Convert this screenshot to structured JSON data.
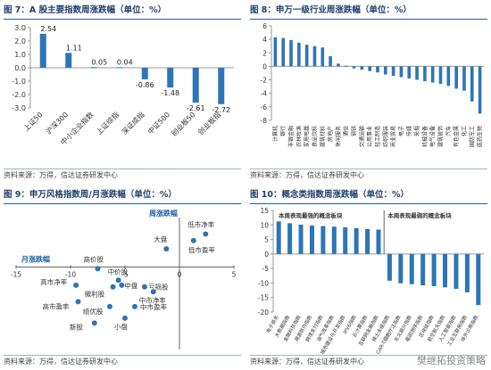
{
  "panels": {
    "p7": {
      "title": "图 7：A 股主要指数周涨跌幅（单位：%）",
      "source": "资料来源：万得，信达证券研发中心"
    },
    "p8": {
      "title": "图 8：申万一级行业周涨跌幅（单位：%）",
      "source": "资料来源：万得，信达证券研发中心"
    },
    "p9": {
      "title": "图 9：申万风格指数周/月涨跌幅（单位：%）",
      "source": "资料来源：万得，信达证券研发中心"
    },
    "p10": {
      "title": "图 10：概念类指数周涨跌幅（单位：%）",
      "source": "资料来源：万得，信达证券研发中心"
    }
  },
  "watermark": "樊继拓投资策略",
  "colors": {
    "bar": "#2e75b6",
    "accent": "#1f5fa8",
    "point": "#2e75b6"
  },
  "chart_data": [
    {
      "id": "p7",
      "type": "bar",
      "categories": [
        "上证50",
        "沪深300",
        "中小企业指数",
        "上证综指",
        "深证成指",
        "中证500",
        "创业板50",
        "创业板指"
      ],
      "values": [
        2.54,
        1.11,
        0.05,
        0.04,
        -0.86,
        -1.48,
        -2.61,
        -2.72
      ],
      "value_labels": [
        "2.54",
        "1.11",
        "0.05",
        "0.04",
        "-0.86",
        "-1.48",
        "-2.61",
        "-2.72"
      ],
      "yticks": [
        "3.0",
        "2.0",
        "1.0",
        "0.0",
        "-1.0",
        "-2.0",
        "-3.0"
      ],
      "ylim": [
        -3,
        3
      ]
    },
    {
      "id": "p8",
      "type": "bar",
      "categories": [
        "计算机",
        "银行",
        "非银金融",
        "农林牧渔",
        "家用电器",
        "食品饮料",
        "建筑材料",
        "房地产",
        "休闲服务",
        "通信",
        "钢铁",
        "交通运输",
        "公用事业",
        "轻工制造",
        "纺织服装",
        "商业贸易",
        "电子",
        "传媒",
        "采掘",
        "机械设备",
        "电气设备",
        "建筑装饰",
        "汽车",
        "有色金属",
        "化工",
        "国防军工",
        "医药生物"
      ],
      "values": [
        4.3,
        4.2,
        3.9,
        3.5,
        3.2,
        3.0,
        2.8,
        1.5,
        0.4,
        0.1,
        -0.3,
        -0.5,
        -0.7,
        -0.9,
        -1.2,
        -1.4,
        -1.6,
        -1.8,
        -2.0,
        -2.2,
        -2.4,
        -2.6,
        -2.9,
        -3.3,
        -3.6,
        -5.2,
        -7.0
      ],
      "yticks": [
        "6",
        "4",
        "2",
        "0",
        "-2",
        "-4",
        "-6",
        "-8"
      ],
      "ylim": [
        -8,
        6
      ]
    },
    {
      "id": "p9",
      "type": "scatter",
      "xlabel": "月涨跌幅",
      "ylabel": "周涨跌幅",
      "xlim": [
        -15,
        5
      ],
      "ylim": [
        -5,
        3
      ],
      "xticks": [
        "-15",
        "-10",
        "-5",
        "0",
        "5"
      ],
      "points": [
        {
          "label": "低市净率",
          "x": 2.4,
          "y": 2.0
        },
        {
          "label": "大盘",
          "x": -1.2,
          "y": 1.1
        },
        {
          "label": "低市盈率",
          "x": 1.3,
          "y": 1.6
        },
        {
          "label": "高价股",
          "x": -7.5,
          "y": -0.1
        },
        {
          "label": "中价股",
          "x": -5.6,
          "y": -0.8
        },
        {
          "label": "高市净率",
          "x": -9.5,
          "y": -1.1
        },
        {
          "label": "微利股",
          "x": -6.1,
          "y": -1.2
        },
        {
          "label": "中盘",
          "x": -5.3,
          "y": -1.1
        },
        {
          "label": "亏损股",
          "x": -3.2,
          "y": -1.2
        },
        {
          "label": "中市净率",
          "x": -2.4,
          "y": -1.5
        },
        {
          "label": "高市盈率",
          "x": -9.3,
          "y": -2.1
        },
        {
          "label": "绩优股",
          "x": -6.4,
          "y": -2.4
        },
        {
          "label": "中市盈率",
          "x": -4.1,
          "y": -2.4
        },
        {
          "label": "小盘",
          "x": -5.0,
          "y": -3.1
        },
        {
          "label": "新股",
          "x": -7.8,
          "y": -3.4
        }
      ]
    },
    {
      "id": "p10",
      "type": "bar",
      "annotation_left": "本周表现最强的概念板块",
      "annotation_right": "本周表现最弱的概念板块",
      "categories": [
        "电子商务",
        "大数据指数",
        "金融科技指数",
        "溯源防伪指数",
        "跨境支付指数",
        "油气改革指数",
        "城市建设与开发指数",
        "IPV6指数",
        "云计算指数",
        "互联网金融指数",
        "稀土永磁指数",
        "CAR-T细胞疗法指数",
        "东北振兴指数",
        "基因测序指数",
        "区块链指数",
        "航空航天指数",
        "人工智能指数",
        "工业互联网指数",
        "体外诊断指数"
      ],
      "values": [
        11.2,
        10.6,
        10.1,
        9.8,
        9.6,
        9.4,
        9.2,
        8.9,
        8.6,
        8.4,
        -9.2,
        -10.1,
        -10.4,
        -10.8,
        -11.1,
        -11.5,
        -12.0,
        -13.2,
        -17.6
      ],
      "yticks": [
        "15",
        "10",
        "5",
        "0",
        "-5",
        "-10",
        "-15",
        "-20"
      ],
      "ylim": [
        -20,
        15
      ]
    }
  ]
}
